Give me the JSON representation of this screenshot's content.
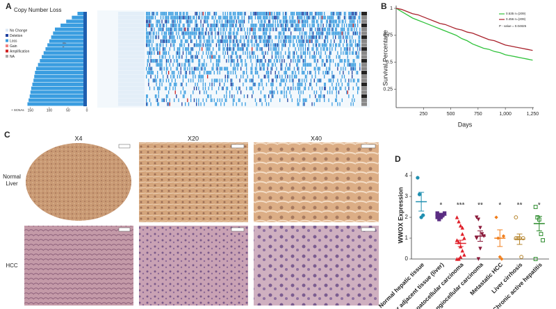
{
  "panels": [
    "A",
    "B",
    "C",
    "D"
  ],
  "panel_a": {
    "type": "hbar",
    "title": "Copy Number Loss",
    "legend": [
      {
        "name": "No Change",
        "color": "#dbe8f5"
      },
      {
        "name": "Deletion",
        "color": "#1f3f9f"
      },
      {
        "name": "Loss",
        "color": "#3a9de0"
      },
      {
        "name": "Gain",
        "color": "#f08080"
      },
      {
        "name": "Amplification",
        "color": "#d02020"
      },
      {
        "name": "NA",
        "color": "#aaaaaa"
      }
    ],
    "values": [
      25,
      40,
      55,
      70,
      85,
      90,
      95,
      100,
      105,
      110,
      115,
      120,
      125,
      130,
      135,
      138,
      140,
      142,
      145,
      148,
      150,
      152,
      155,
      158
    ],
    "color": "#3a9de0",
    "xlim": [
      0,
      170
    ],
    "xticks": [
      150,
      100,
      50,
      0
    ],
    "xlabel": "+ SCNAs"
  },
  "chart_data": {
    "type": "line",
    "xlabel": "Days",
    "ylabel": "Survival Percentage",
    "x": [
      0,
      50,
      100,
      150,
      200,
      250,
      300,
      350,
      400,
      450,
      500,
      550,
      600,
      650,
      700,
      750,
      800,
      850,
      900,
      950,
      1000,
      1050,
      1100,
      1150,
      1200,
      1250
    ],
    "series": [
      {
        "name": "0.535 n=(209)",
        "color": "#2fc23a",
        "values": [
          1,
          0.97,
          0.94,
          0.91,
          0.89,
          0.87,
          0.85,
          0.83,
          0.81,
          0.79,
          0.77,
          0.75,
          0.72,
          0.7,
          0.67,
          0.65,
          0.63,
          0.62,
          0.6,
          0.59,
          0.57,
          0.56,
          0.55,
          0.54,
          0.53,
          0.52
        ]
      },
      {
        "name": "0.456 n=(209)",
        "color": "#a8202a",
        "values": [
          1,
          0.99,
          0.97,
          0.95,
          0.94,
          0.92,
          0.9,
          0.88,
          0.86,
          0.85,
          0.83,
          0.81,
          0.8,
          0.78,
          0.77,
          0.75,
          0.73,
          0.71,
          0.7,
          0.68,
          0.66,
          0.65,
          0.64,
          0.63,
          0.62,
          0.61
        ]
      }
    ],
    "annotation": "P - value = 0.04825",
    "xlim": [
      0,
      1260
    ],
    "ylim": [
      0.08,
      1
    ],
    "xticks": [
      250,
      500,
      750,
      {
        "value": 1000,
        "label": "1,000"
      },
      {
        "value": 1250,
        "label": "1,250"
      }
    ],
    "yticks": [
      0.25,
      0.5,
      0.75,
      1
    ],
    "legend": "top-right"
  },
  "panel_c": {
    "columns": [
      "X4",
      "X20",
      "X40"
    ],
    "rows": [
      "Normal Liver",
      "HCC"
    ]
  },
  "panel_d": {
    "type": "dot",
    "ylabel": "WWOX Expression",
    "ylim": [
      0,
      4.2
    ],
    "yticks": [
      0,
      1,
      2,
      3,
      4
    ],
    "groups": [
      {
        "name": "Normal hepatic tissue",
        "color": "#1f8fb0",
        "marker": "circle",
        "mean": 2.75,
        "error": 0.45,
        "points": [
          3.9,
          3.1,
          2.0,
          2.1
        ],
        "significance": null
      },
      {
        "name": "Cancer adjacent tissue (liver)",
        "color": "#5a2d82",
        "marker": "square",
        "mean": 2.1,
        "error": 0.1,
        "points": [
          2.2,
          2.1,
          2.0,
          2.1,
          2.2,
          2.0,
          1.9,
          2.1
        ],
        "significance": "*"
      },
      {
        "name": "Hepatocellular carcinoma",
        "color": "#e0202a",
        "marker": "triangle",
        "mean": 0.75,
        "error": 0.15,
        "points": [
          2.0,
          1.8,
          1.6,
          1.2,
          1.0,
          0.9,
          0.8,
          0.6,
          0.4,
          0.2,
          0,
          0,
          0.1,
          1.5
        ],
        "significance": "***"
      },
      {
        "name": "Cholangiocellular carcinoma",
        "color": "#8b1a3a",
        "marker": "triangle-down",
        "mean": 1.1,
        "error": 0.25,
        "points": [
          2.0,
          1.9,
          1.5,
          1.2,
          1.1,
          1.0,
          0,
          0.5
        ],
        "significance": "**"
      },
      {
        "name": "Metastatic HCC",
        "color": "#f07d1a",
        "marker": "diamond",
        "mean": 1.0,
        "error": 0.4,
        "points": [
          2.0,
          1.0,
          0.1,
          0,
          1.1
        ],
        "significance": "*"
      },
      {
        "name": "Liver cirrhosis",
        "color": "#b5832a",
        "marker": "circle-open",
        "mean": 0.95,
        "error": 0.25,
        "points": [
          2.0,
          1.0,
          1.0,
          0.1,
          1.0,
          1.0
        ],
        "significance": "**"
      },
      {
        "name": "Chronic active hepatitis",
        "color": "#2a8a2a",
        "marker": "square-open",
        "mean": 1.7,
        "error": 0.35,
        "points": [
          2.5,
          2.0,
          1.9,
          1.2,
          0.9,
          0
        ],
        "significance": "*"
      }
    ]
  }
}
